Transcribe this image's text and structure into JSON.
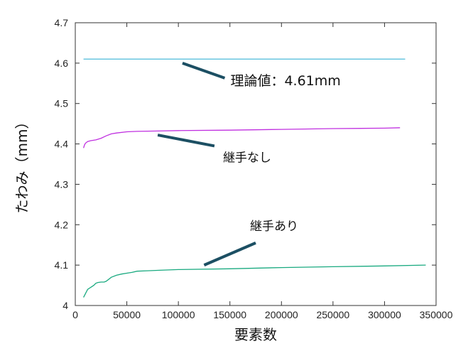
{
  "chart_data": {
    "type": "line",
    "xlabel": "要素数",
    "ylabel": "たわみ（mm）",
    "xlim": [
      0,
      350000
    ],
    "ylim": [
      4.0,
      4.7
    ],
    "x_ticks": [
      "0",
      "50000",
      "100000",
      "150000",
      "200000",
      "250000",
      "300000",
      "350000"
    ],
    "x_tick_values": [
      0,
      50000,
      100000,
      150000,
      200000,
      250000,
      300000,
      350000
    ],
    "y_ticks": [
      "4",
      "4.1",
      "4.2",
      "4.3",
      "4.4",
      "4.5",
      "4.6",
      "4.7"
    ],
    "y_tick_values": [
      4.0,
      4.1,
      4.2,
      4.3,
      4.4,
      4.5,
      4.6,
      4.7
    ],
    "grid": false,
    "series": [
      {
        "name": "理論値：4.61mm",
        "color": "#5bc0de",
        "x": [
          8000,
          320000
        ],
        "y": [
          4.61,
          4.61
        ]
      },
      {
        "name": "継手なし",
        "color": "#c030e0",
        "x": [
          8000,
          9000,
          10000,
          12000,
          15000,
          20000,
          25000,
          30000,
          35000,
          40000,
          50000,
          60000,
          80000,
          100000,
          150000,
          200000,
          250000,
          300000,
          315000
        ],
        "y": [
          4.39,
          4.398,
          4.402,
          4.406,
          4.408,
          4.41,
          4.414,
          4.42,
          4.425,
          4.427,
          4.43,
          4.431,
          4.432,
          4.433,
          4.434,
          4.436,
          4.438,
          4.439,
          4.44
        ]
      },
      {
        "name": "継手あり",
        "color": "#1aaa80",
        "x": [
          8000,
          10000,
          12000,
          15000,
          18000,
          20000,
          22000,
          25000,
          28000,
          30000,
          35000,
          40000,
          45000,
          50000,
          55000,
          60000,
          70000,
          80000,
          100000,
          150000,
          200000,
          250000,
          300000,
          340000
        ],
        "y": [
          4.02,
          4.03,
          4.04,
          4.045,
          4.05,
          4.055,
          4.057,
          4.058,
          4.058,
          4.06,
          4.07,
          4.075,
          4.078,
          4.08,
          4.082,
          4.085,
          4.086,
          4.087,
          4.089,
          4.091,
          4.094,
          4.096,
          4.098,
          4.1
        ]
      }
    ],
    "annotations": [
      {
        "text": "理論値：4.61mm",
        "target": [
          104000,
          4.6
        ],
        "arrow_from": [
          145000,
          4.563
        ]
      },
      {
        "text": "継手なし",
        "target": [
          80000,
          4.422
        ],
        "arrow_from": [
          135000,
          4.395
        ]
      },
      {
        "text": "継手あり",
        "target": [
          125000,
          4.1
        ],
        "arrow_from": [
          175000,
          4.155
        ]
      }
    ]
  }
}
